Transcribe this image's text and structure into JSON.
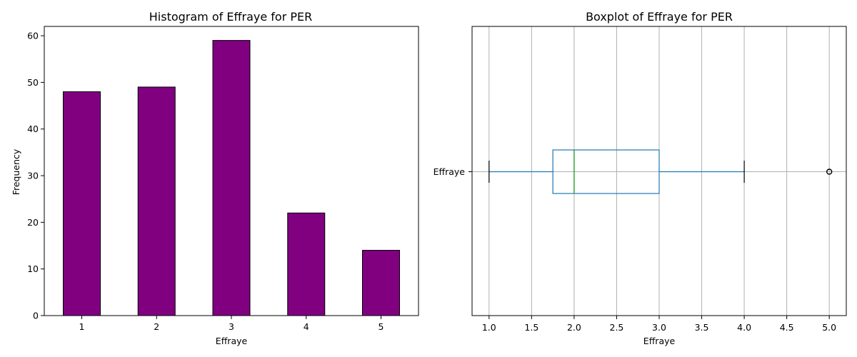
{
  "chart_data": [
    {
      "type": "bar",
      "title": "Histogram of Effraye for PER",
      "xlabel": "Effraye",
      "ylabel": "Frequency",
      "categories": [
        "1",
        "2",
        "3",
        "4",
        "5"
      ],
      "values": [
        48,
        49,
        59,
        22,
        14
      ],
      "ylim": [
        0,
        62
      ],
      "yticks": [
        0,
        10,
        20,
        30,
        40,
        50,
        60
      ],
      "bar_color": "#800080",
      "edge_color": "#000000",
      "grid": false
    },
    {
      "type": "boxplot",
      "title": "Boxplot of Effraye for PER",
      "xlabel": "Effraye",
      "category": "Effraye",
      "whisker_low": 1.0,
      "q1": 1.75,
      "median": 2.0,
      "q3": 3.0,
      "whisker_high": 4.0,
      "outliers": [
        5.0
      ],
      "xlim": [
        0.8,
        5.2
      ],
      "xticks": [
        "1.0",
        "1.5",
        "2.0",
        "2.5",
        "3.0",
        "3.5",
        "4.0",
        "4.5",
        "5.0"
      ],
      "box_color": "#1f77b4",
      "median_color": "#2ca02c",
      "grid": true
    }
  ]
}
